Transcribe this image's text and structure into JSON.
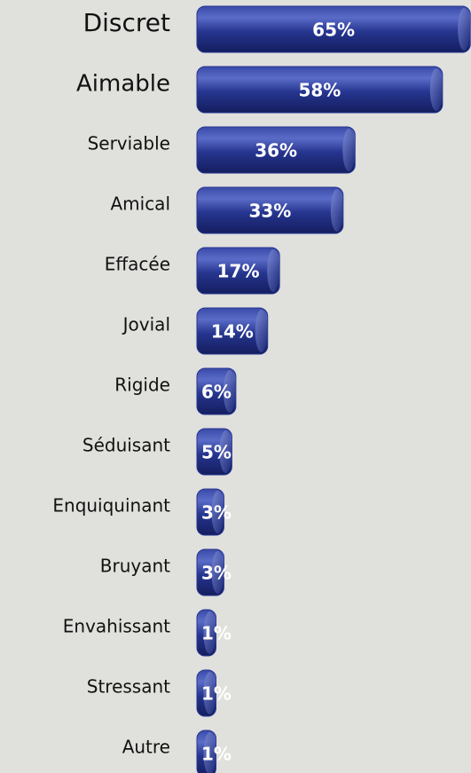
{
  "chart_data": {
    "type": "bar",
    "categories": [
      "Discret",
      "Aimable",
      "Serviable",
      "Amical",
      "Effacée",
      "Jovial",
      "Rigide",
      "Séduisant",
      "Enquiquinant",
      "Bruyant",
      "Envahissant",
      "Stressant",
      "Autre"
    ],
    "values": [
      65,
      58,
      36,
      33,
      17,
      14,
      6,
      5,
      3,
      3,
      1,
      1,
      1
    ],
    "value_labels": [
      "65%",
      "58%",
      "36%",
      "33%",
      "17%",
      "14%",
      "6%",
      "5%",
      "3%",
      "3%",
      "1%",
      "1%",
      "1%"
    ],
    "color": "#26358f"
  }
}
